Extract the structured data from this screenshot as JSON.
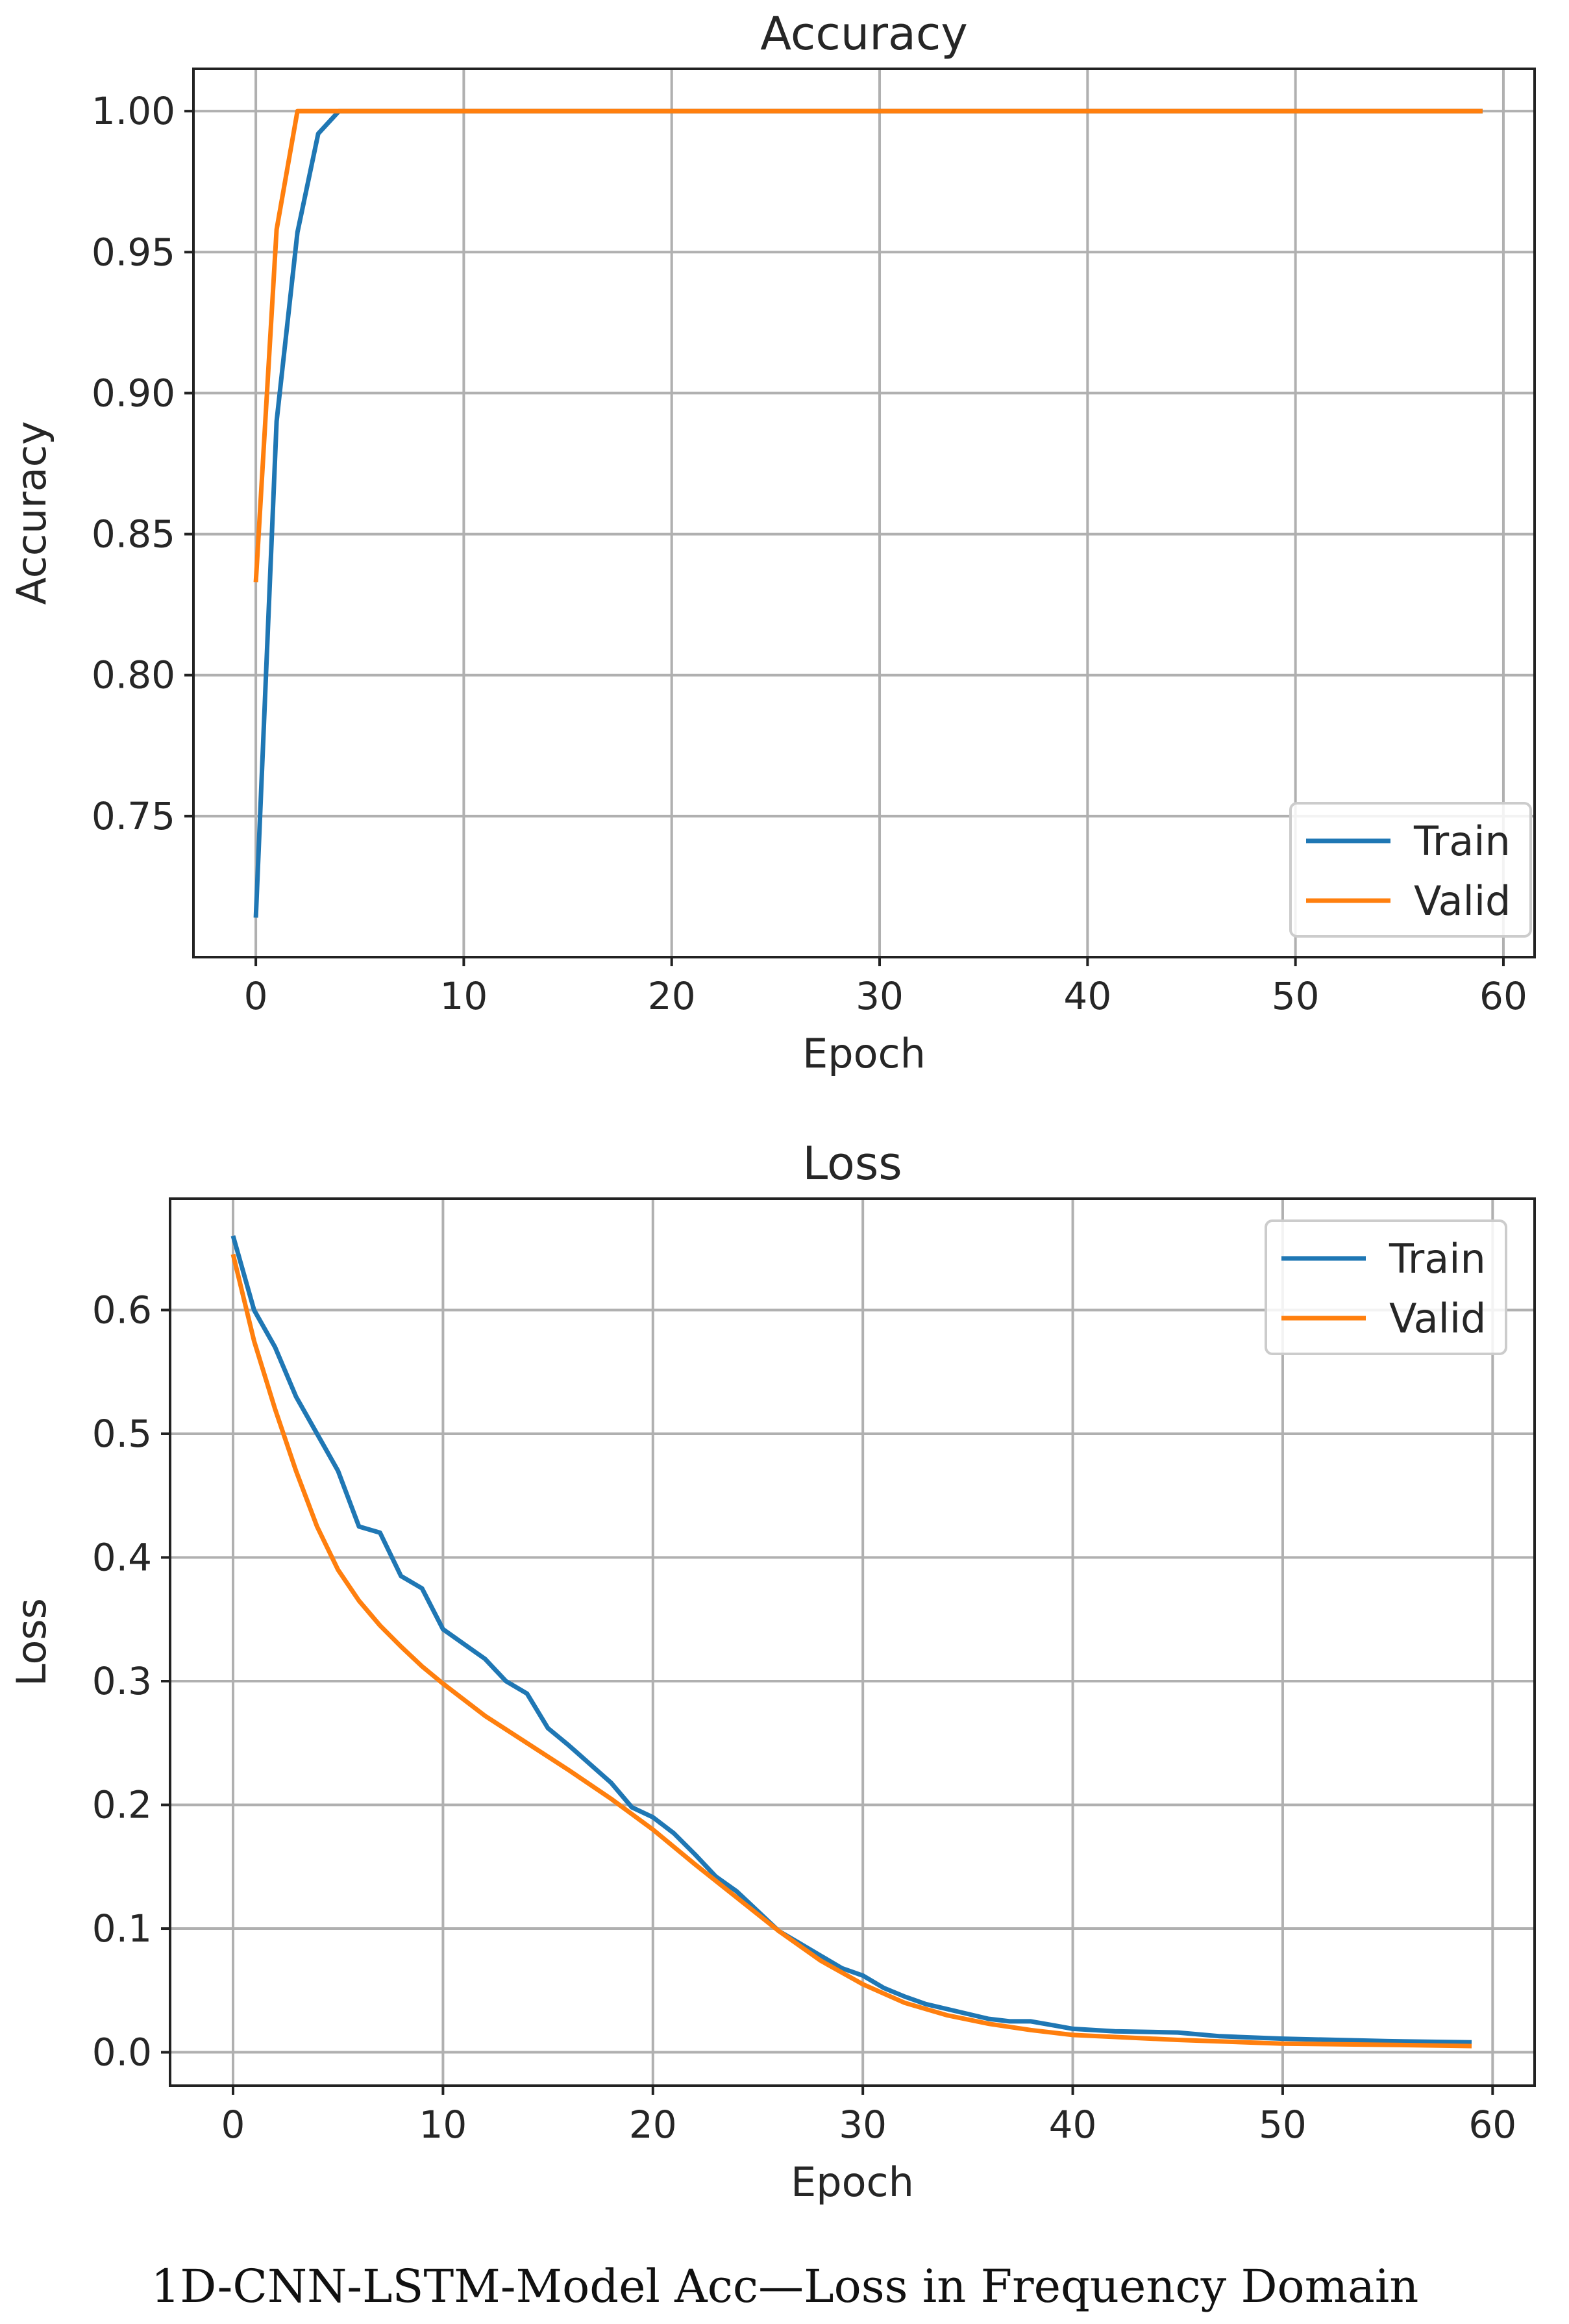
{
  "caption": "1D-CNN-LSTM-Model Acc—Loss in Frequency Domain",
  "chart_data": [
    {
      "type": "line",
      "title": "Accuracy",
      "xlabel": "Epoch",
      "ylabel": "Accuracy",
      "xlim": [
        -3,
        61.5
      ],
      "ylim": [
        0.7,
        1.015
      ],
      "xticks": [
        0,
        10,
        20,
        30,
        40,
        50,
        60
      ],
      "xtick_labels": [
        "0",
        "10",
        "20",
        "30",
        "40",
        "50",
        "60"
      ],
      "yticks": [
        0.75,
        0.8,
        0.85,
        0.9,
        0.95,
        1.0
      ],
      "ytick_labels": [
        "0.75",
        "0.80",
        "0.85",
        "0.90",
        "0.95",
        "1.00"
      ],
      "grid": true,
      "legend_position": "bottom-right",
      "series": [
        {
          "name": "Train",
          "color": "#1f77b4",
          "x": [
            0,
            1,
            2,
            3,
            4,
            59
          ],
          "y": [
            0.714,
            0.89,
            0.957,
            0.992,
            1.0,
            1.0
          ]
        },
        {
          "name": "Valid",
          "color": "#ff7f0e",
          "x": [
            0,
            1,
            2,
            59
          ],
          "y": [
            0.833,
            0.958,
            1.0,
            1.0
          ]
        }
      ]
    },
    {
      "type": "line",
      "title": "Loss",
      "xlabel": "Epoch",
      "ylabel": "Loss",
      "xlim": [
        -3,
        62
      ],
      "ylim": [
        -0.027,
        0.69
      ],
      "xticks": [
        0,
        10,
        20,
        30,
        40,
        50,
        60
      ],
      "xtick_labels": [
        "0",
        "10",
        "20",
        "30",
        "40",
        "50",
        "60"
      ],
      "yticks": [
        0.0,
        0.1,
        0.2,
        0.3,
        0.4,
        0.5,
        0.6
      ],
      "ytick_labels": [
        "0.0",
        "0.1",
        "0.2",
        "0.3",
        "0.4",
        "0.5",
        "0.6"
      ],
      "grid": true,
      "legend_position": "top-right",
      "series": [
        {
          "name": "Train",
          "color": "#1f77b4",
          "x": [
            0,
            1,
            2,
            3,
            4,
            5,
            6,
            7,
            8,
            9,
            10,
            11,
            12,
            13,
            14,
            15,
            16,
            17,
            18,
            19,
            20,
            21,
            22,
            23,
            24,
            25,
            26,
            27,
            28,
            29,
            30,
            31,
            32,
            33,
            34,
            35,
            36,
            37,
            38,
            39,
            40,
            42,
            45,
            47,
            50,
            55,
            59
          ],
          "y": [
            0.66,
            0.6,
            0.57,
            0.53,
            0.5,
            0.47,
            0.425,
            0.42,
            0.385,
            0.375,
            0.342,
            0.33,
            0.318,
            0.3,
            0.29,
            0.262,
            0.248,
            0.233,
            0.218,
            0.198,
            0.19,
            0.177,
            0.16,
            0.142,
            0.13,
            0.114,
            0.098,
            0.088,
            0.078,
            0.068,
            0.062,
            0.052,
            0.045,
            0.039,
            0.035,
            0.031,
            0.027,
            0.025,
            0.025,
            0.022,
            0.019,
            0.017,
            0.016,
            0.013,
            0.011,
            0.009,
            0.008
          ]
        },
        {
          "name": "Valid",
          "color": "#ff7f0e",
          "x": [
            0,
            1,
            2,
            3,
            4,
            5,
            6,
            7,
            8,
            9,
            10,
            12,
            14,
            16,
            18,
            20,
            22,
            24,
            26,
            28,
            30,
            32,
            34,
            36,
            38,
            40,
            45,
            50,
            55,
            59
          ],
          "y": [
            0.645,
            0.575,
            0.52,
            0.47,
            0.425,
            0.39,
            0.365,
            0.345,
            0.328,
            0.312,
            0.298,
            0.272,
            0.25,
            0.228,
            0.205,
            0.18,
            0.152,
            0.125,
            0.098,
            0.074,
            0.055,
            0.04,
            0.03,
            0.023,
            0.018,
            0.014,
            0.01,
            0.007,
            0.006,
            0.005
          ]
        }
      ]
    }
  ]
}
